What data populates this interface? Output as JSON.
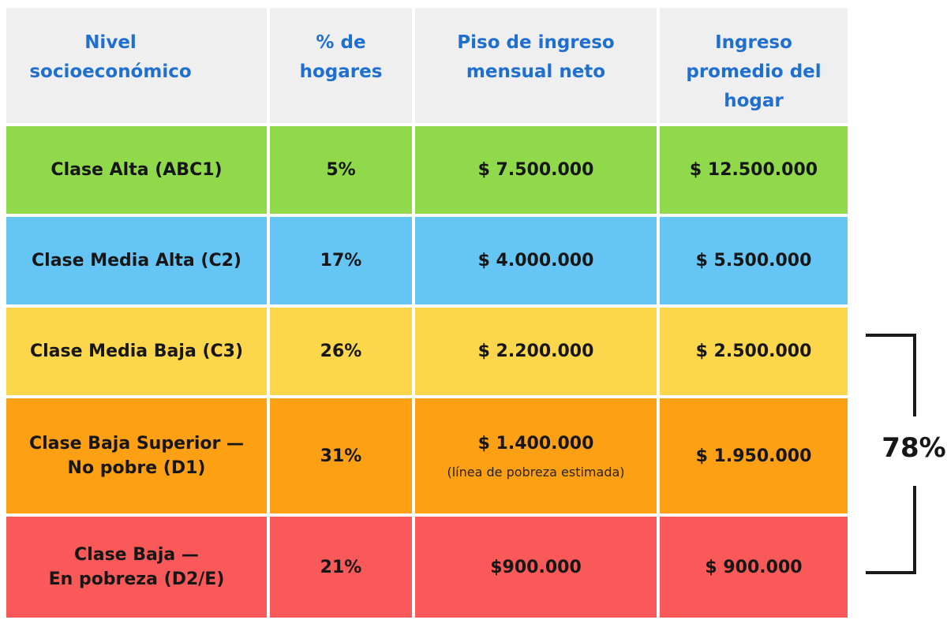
{
  "headers": [
    "Nivel\nsocioeconómico",
    "% de\nhogares",
    "Piso de ingreso\nmensual neto",
    "Ingreso\npromedio del\nhogar"
  ],
  "rows": [
    {
      "label": "Clase Alta (ABC1)",
      "pct": "5%",
      "floor": "$ 7.500.000",
      "floor_note": "",
      "avg": "$ 12.500.000",
      "color": "#8fd94a"
    },
    {
      "label": "Clase Media Alta (C2)",
      "pct": "17%",
      "floor": "$ 4.000.000",
      "floor_note": "",
      "avg": "$ 5.500.000",
      "color": "#65c6f5"
    },
    {
      "label": "Clase Media Baja (C3)",
      "pct": "26%",
      "floor": "$ 2.200.000",
      "floor_note": "",
      "avg": "$ 2.500.000",
      "color": "#fcd74b"
    },
    {
      "label": "Clase Baja Superior —\nNo pobre (D1)",
      "pct": "31%",
      "floor": "$ 1.400.000",
      "floor_note": "(línea de pobreza estimada)",
      "avg": "$ 1.950.000",
      "color": "#fda013"
    },
    {
      "label": "Clase Baja —\nEn pobreza (D2/E)",
      "pct": "21%",
      "floor": "$900.000",
      "floor_note": "",
      "avg": "$ 900.000",
      "color": "#fa5959"
    }
  ],
  "bracket": {
    "label": "78%"
  },
  "chart_data": {
    "type": "table",
    "columns": [
      "Nivel socioeconómico",
      "% de hogares",
      "Piso de ingreso mensual neto",
      "Ingreso promedio del hogar"
    ],
    "rows": [
      [
        "Clase Alta (ABC1)",
        "5%",
        "$ 7.500.000",
        "$ 12.500.000"
      ],
      [
        "Clase Media Alta (C2)",
        "17%",
        "$ 4.000.000",
        "$ 5.500.000"
      ],
      [
        "Clase Media Baja (C3)",
        "26%",
        "$ 2.200.000",
        "$ 2.500.000"
      ],
      [
        "Clase Baja Superior — No pobre (D1)",
        "31%",
        "$ 1.400.000 (línea de pobreza estimada)",
        "$ 1.950.000"
      ],
      [
        "Clase Baja — En pobreza (D2/E)",
        "21%",
        "$900.000",
        "$ 900.000"
      ]
    ],
    "annotations": [
      "78%"
    ]
  }
}
